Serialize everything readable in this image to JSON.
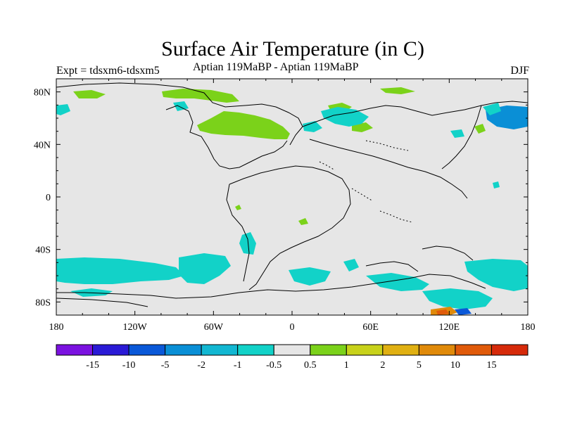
{
  "title": "Surface Air Temperature (in C)",
  "experiment_label": "Expt = tdsxm6-tdsxm5",
  "subtitle": "Aptian   119MaBP - Aptian   119MaBP",
  "season": "DJF",
  "map": {
    "projection": "cylindrical equidistant",
    "lon_range": [
      -180,
      180
    ],
    "lat_range": [
      -90,
      90
    ],
    "background_fill": "#e6e6e6",
    "x_ticks": [
      "180",
      "120W",
      "60W",
      "0",
      "60E",
      "120E",
      "180"
    ],
    "y_ticks": [
      "80N",
      "40N",
      "0",
      "40S",
      "80S"
    ]
  },
  "legend": {
    "colors": [
      "#7b12e0",
      "#2a1ad6",
      "#0a58d8",
      "#0a8fd6",
      "#12b7d2",
      "#12d2c8",
      "#e6e6e6",
      "#7bd21a",
      "#c8d21a",
      "#e0b012",
      "#e08a0a",
      "#e05a0a",
      "#d62a0a"
    ],
    "labels": [
      "-15",
      "-10",
      "-5",
      "-2",
      "-1",
      "-0.5",
      "0.5",
      "1",
      "2",
      "5",
      "10",
      "15"
    ]
  }
}
